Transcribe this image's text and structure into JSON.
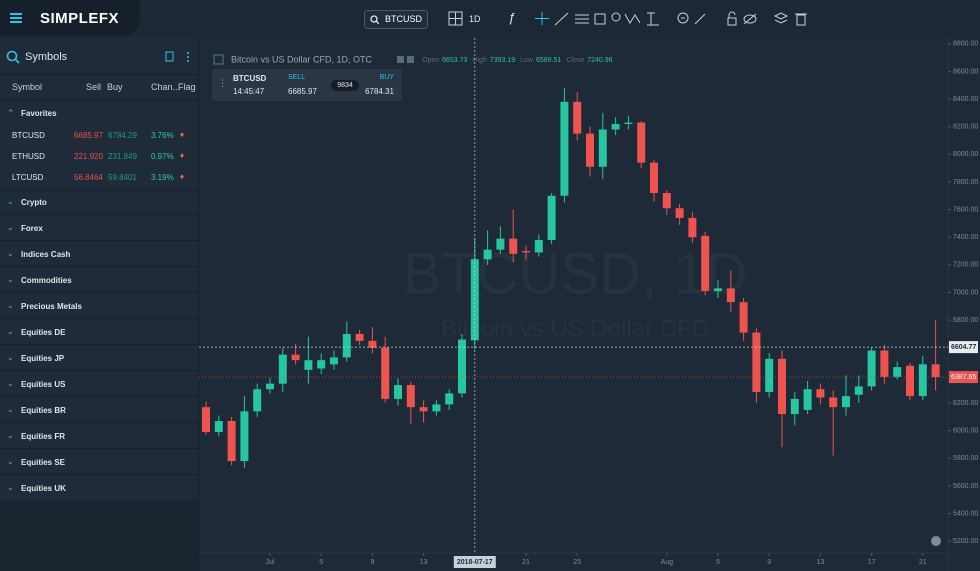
{
  "header": {
    "logo": "SIMPLEFX",
    "symbol": "BTCUSD",
    "interval": "1D"
  },
  "symbols": {
    "title": "Symbols",
    "columns": [
      "Symbol",
      "Sell",
      "Buy",
      "Chan...",
      "Flag"
    ],
    "favorites": "Favorites",
    "rows": [
      [
        "BTCUSD",
        "6685.97",
        "6784.29",
        "3.76%"
      ],
      [
        "ETHUSD",
        "221.920",
        "231.849",
        "0.97%"
      ],
      [
        "LTCUSD",
        "56.8464",
        "59.8401",
        "3.19%"
      ]
    ],
    "groups": [
      "Crypto",
      "Forex",
      "Indices Cash",
      "Commodities",
      "Precious Metals",
      "Equities DE",
      "Equities JP",
      "Equities US",
      "Equities BR",
      "Equities FR",
      "Equities SE",
      "Equities UK"
    ]
  },
  "trade_panel": {
    "symbol": "BTCUSD",
    "time": "14:45:47",
    "sell_label": "SELL",
    "sell": "6685.97",
    "spread": "9834",
    "buy_label": "BUY",
    "buy": "6784.31"
  },
  "chart_data": {
    "type": "candlestick",
    "title": "Bitcoin vs US Dollar CFD, 1D, OTC",
    "ohlc_labels": [
      "Open",
      "High",
      "Low",
      "Close"
    ],
    "watermark": "BTCUSD, 1D",
    "watermark_sub": "Bitcoin vs US Dollar CFD",
    "up_color": "#26c6a0",
    "down_color": "#ef5350",
    "x": [
      "2018-06-26",
      "2018-06-27",
      "2018-06-28",
      "2018-06-29",
      "2018-06-30",
      "2018-07-01",
      "2018-07-02",
      "2018-07-03",
      "2018-07-04",
      "2018-07-05",
      "2018-07-06",
      "2018-07-07",
      "2018-07-08",
      "2018-07-09",
      "2018-07-10",
      "2018-07-11",
      "2018-07-12",
      "2018-07-13",
      "2018-07-14",
      "2018-07-15",
      "2018-07-16",
      "2018-07-17",
      "2018-07-18",
      "2018-07-19",
      "2018-07-20",
      "2018-07-21",
      "2018-07-22",
      "2018-07-23",
      "2018-07-24",
      "2018-07-25",
      "2018-07-26",
      "2018-07-27",
      "2018-07-28",
      "2018-07-29",
      "2018-07-30",
      "2018-07-31",
      "2018-08-01",
      "2018-08-02",
      "2018-08-03",
      "2018-08-04",
      "2018-08-05",
      "2018-08-06",
      "2018-08-07",
      "2018-08-08",
      "2018-08-09",
      "2018-08-10",
      "2018-08-11",
      "2018-08-12",
      "2018-08-13",
      "2018-08-14",
      "2018-08-15",
      "2018-08-16",
      "2018-08-17",
      "2018-08-18",
      "2018-08-19",
      "2018-08-20",
      "2018-08-21",
      "2018-08-22"
    ],
    "open": [
      6170,
      5990,
      6070,
      5780,
      6140,
      6300,
      6340,
      6550,
      6440,
      6450,
      6480,
      6530,
      6700,
      6650,
      6600,
      6230,
      6330,
      6170,
      6140,
      6190,
      6270,
      6653.73,
      7240,
      7310,
      7390,
      7300,
      7290,
      7380,
      7700,
      8380,
      8150,
      7910,
      8180,
      8220,
      8230,
      7940,
      7720,
      7610,
      7540,
      7410,
      7010,
      7030,
      6930,
      6710,
      6280,
      6520,
      6120,
      6150,
      6300,
      6240,
      6170,
      6260,
      6320,
      6580,
      6390,
      6470,
      6250,
      6480
    ],
    "high": [
      6210,
      6110,
      6100,
      6250,
      6340,
      6380,
      6600,
      6630,
      6680,
      6560,
      6580,
      6790,
      6730,
      6750,
      6680,
      6380,
      6350,
      6220,
      6220,
      6300,
      6700,
      7393.19,
      7450,
      7480,
      7600,
      7340,
      7420,
      7720,
      8480,
      8450,
      8200,
      8300,
      8270,
      8280,
      8240,
      7960,
      7740,
      7640,
      7580,
      7440,
      7090,
      7160,
      6960,
      6740,
      6560,
      6580,
      6280,
      6360,
      6340,
      6290,
      6400,
      6400,
      6600,
      6620,
      6500,
      6490,
      6540,
      6800
    ],
    "low": [
      5970,
      5960,
      5750,
      5730,
      6100,
      6270,
      6280,
      6480,
      6340,
      6410,
      6440,
      6500,
      6620,
      6560,
      6200,
      6180,
      6050,
      6060,
      6110,
      6150,
      6240,
      6589.51,
      7200,
      7280,
      7220,
      7240,
      7260,
      7350,
      7650,
      8100,
      7840,
      7820,
      8140,
      8180,
      7900,
      7660,
      7560,
      7490,
      7360,
      6980,
      6960,
      6860,
      6650,
      6200,
      6240,
      5880,
      6040,
      6120,
      6190,
      5820,
      6110,
      6200,
      6290,
      6340,
      6370,
      6220,
      6220,
      6290
    ],
    "close": [
      5990,
      6070,
      5780,
      6140,
      6300,
      6340,
      6550,
      6510,
      6510,
      6510,
      6530,
      6700,
      6650,
      6600,
      6230,
      6330,
      6170,
      6140,
      6190,
      6270,
      6660,
      7240.96,
      7310,
      7390,
      7280,
      7290,
      7380,
      7700,
      8380,
      8150,
      7910,
      8180,
      8220,
      8230,
      7940,
      7720,
      7610,
      7540,
      7400,
      7010,
      7030,
      6930,
      6710,
      6280,
      6520,
      6120,
      6230,
      6300,
      6240,
      6170,
      6250,
      6320,
      6580,
      6390,
      6460,
      6250,
      6480,
      6387.65
    ],
    "ylim": [
      5100,
      8900
    ],
    "yticks": [
      {
        "value": 5200,
        "label": "5200.00"
      },
      {
        "value": 5400,
        "label": "5400.00"
      },
      {
        "value": 5600,
        "label": "5600.00"
      },
      {
        "value": 5800,
        "label": "5800.00"
      },
      {
        "value": 6000,
        "label": "6000.00"
      },
      {
        "value": 6200,
        "label": "6200.00"
      },
      {
        "value": 6400,
        "label": "6400.00"
      },
      {
        "value": 6600,
        "label": "6600.00"
      },
      {
        "value": 6800,
        "label": "6800.00"
      },
      {
        "value": 7000,
        "label": "7000.00"
      },
      {
        "value": 7200,
        "label": "7200.00"
      },
      {
        "value": 7400,
        "label": "7400.00"
      },
      {
        "value": 7600,
        "label": "7600.00"
      },
      {
        "value": 7800,
        "label": "7800.00"
      },
      {
        "value": 8000,
        "label": "8000.00"
      },
      {
        "value": 8200,
        "label": "8200.00"
      },
      {
        "value": 8400,
        "label": "8400.00"
      },
      {
        "value": 8600,
        "label": "8600.00"
      },
      {
        "value": 8800,
        "label": "8800.00"
      }
    ],
    "xticks": [
      {
        "value": "2018-07-01",
        "label": "Jul"
      },
      {
        "value": "2018-07-05",
        "label": "5"
      },
      {
        "value": "2018-07-09",
        "label": "9"
      },
      {
        "value": "2018-07-13",
        "label": "13"
      },
      {
        "value": "2018-07-21",
        "label": "21"
      },
      {
        "value": "2018-07-25",
        "label": "25"
      },
      {
        "value": "2018-08-01",
        "label": "Aug"
      },
      {
        "value": "2018-08-05",
        "label": "5"
      },
      {
        "value": "2018-08-09",
        "label": "9"
      },
      {
        "value": "2018-08-13",
        "label": "13"
      },
      {
        "value": "2018-08-17",
        "label": "17"
      },
      {
        "value": "2018-08-21",
        "label": "21"
      }
    ],
    "crosshair": {
      "x": "2018-07-17",
      "y": 6604.77
    }
  }
}
